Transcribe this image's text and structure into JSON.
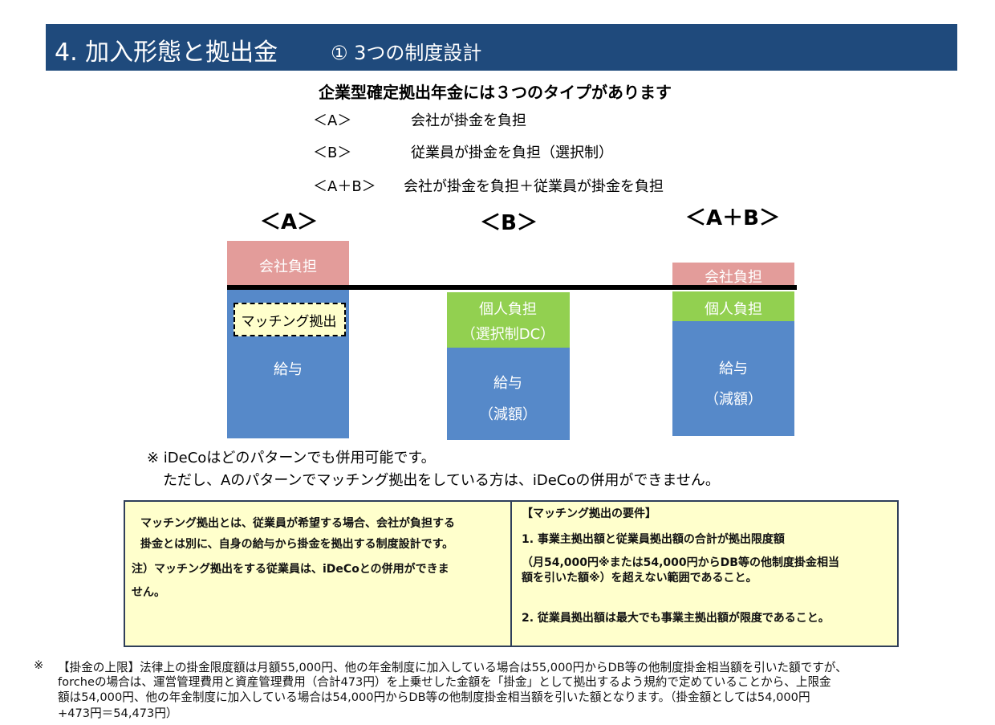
{
  "header": {
    "title": "4. 加入形態と拠出金",
    "subtitle": "① 3つの制度設計"
  },
  "intro": {
    "heading": "企業型確定拠出年金には３つのタイプがあります",
    "types": [
      {
        "label": "＜A＞",
        "description": "会社が掛金を負担"
      },
      {
        "label": "＜B＞",
        "description": "従業員が掛金を負担（選択制）"
      },
      {
        "label": "＜A＋B＞",
        "description": "会社が掛金を負担＋従業員が掛金を負担"
      }
    ]
  },
  "diagram": {
    "columns": [
      {
        "label": "＜A＞",
        "company": "会社負担",
        "matching": "マッチング拠出",
        "salary": [
          "給与"
        ]
      },
      {
        "label": "＜B＞",
        "personal": [
          "個人負担",
          "（選択制DC）"
        ],
        "salary": [
          "給与",
          "（減額）"
        ]
      },
      {
        "label": "＜A＋B＞",
        "company": "会社負担",
        "personal": [
          "個人負担"
        ],
        "salary": [
          "給与",
          "（減額）"
        ]
      }
    ]
  },
  "notes": [
    "※ iDeCoはどのパターンでも併用可能です。",
    "ただし、Aのパターンでマッチング拠出をしている方は、iDeCoの併用ができません。"
  ],
  "box": {
    "left": [
      "マッチング拠出とは、従業員が希望する場合、会社が負担する",
      "掛金とは別に、自身の給与から掛金を拠出する制度設計です。",
      "注）マッチング拠出をする従業員は、iDeCoとの併用ができま",
      "せん。"
    ],
    "right": {
      "heading": "【マッチング拠出の要件】",
      "lines": [
        "1.  事業主拠出額と従業員拠出額の合計が拠出限度額",
        "（月54,000円※または54,000円からDB等の他制度掛金相当",
        "額を引いた額※）を超えない範囲であること。",
        "2.  従業員拠出額は最大でも事業主拠出額が限度であること。"
      ]
    }
  },
  "footnote": {
    "mark": "※",
    "lines": [
      "【掛金の上限】法律上の掛金限度額は月額55,000円、他の年金制度に加入している場合は55,000円からDB等の他制度掛金相当額を引いた額ですが、",
      "forcheの場合は、運営管理費用と資産管理費用（合計473円）を上乗せした金額を「掛金」として拠出するよう規約で定めていることから、上限金",
      "額は54,000円、他の年金制度に加入している場合は54,000円からDB等の他制度掛金相当額を引いた額となります。（掛金額としては54,000円",
      "+473円＝54,473円）"
    ]
  }
}
